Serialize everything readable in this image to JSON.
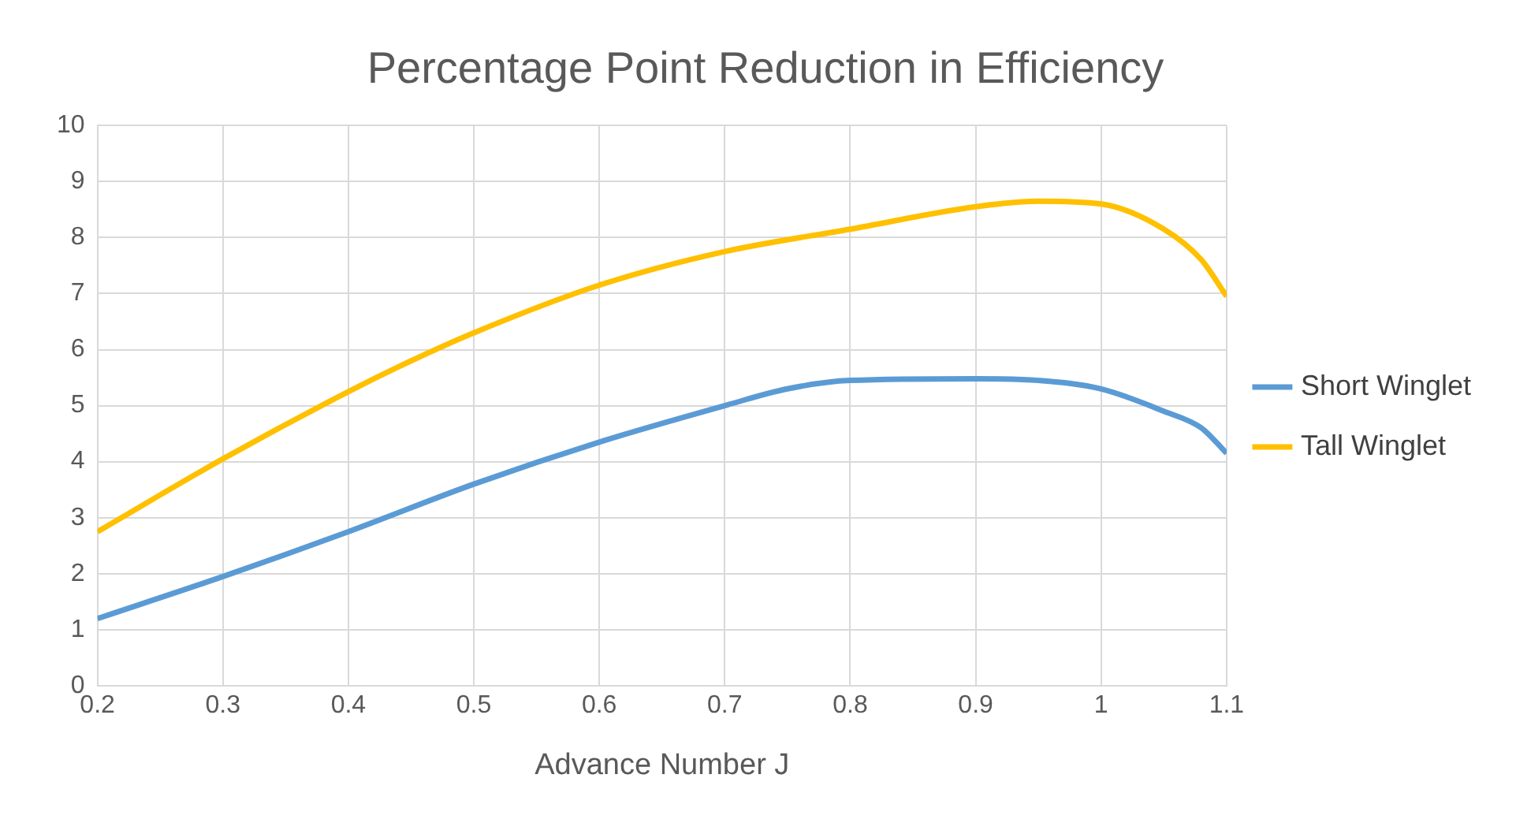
{
  "chart_data": {
    "type": "line",
    "title": "Percentage Point Reduction in Efficiency",
    "xlabel": "Advance Number J",
    "xlim": [
      0.2,
      1.1
    ],
    "xticks": [
      0.2,
      0.3,
      0.4,
      0.5,
      0.6,
      0.7,
      0.8,
      0.9,
      {
        "value": 1,
        "label": "1"
      },
      1.1
    ],
    "ylim": [
      0,
      10
    ],
    "yticks": [
      0,
      1,
      2,
      3,
      4,
      5,
      6,
      7,
      8,
      9,
      10
    ],
    "grid": true,
    "legend": "right",
    "marker": "none",
    "line_style": "solid",
    "series": [
      {
        "name": "Short Winglet",
        "color": "#5b9bd5",
        "x": [
          0.2,
          0.3,
          0.4,
          0.5,
          0.6,
          0.7,
          0.75,
          0.8,
          0.9,
          0.95,
          1.0,
          1.05,
          1.08,
          1.1
        ],
        "values": [
          1.2,
          1.95,
          2.75,
          3.6,
          4.35,
          5.0,
          5.3,
          5.45,
          5.48,
          5.45,
          5.3,
          4.9,
          4.6,
          4.15
        ]
      },
      {
        "name": "Tall Winglet",
        "color": "#ffc000",
        "x": [
          0.2,
          0.3,
          0.4,
          0.45,
          0.5,
          0.6,
          0.7,
          0.8,
          0.9,
          0.95,
          1.0,
          1.05,
          1.08,
          1.1
        ],
        "values": [
          2.75,
          4.05,
          5.25,
          5.8,
          6.3,
          7.15,
          7.75,
          8.15,
          8.55,
          8.65,
          8.6,
          8.15,
          7.6,
          6.95
        ]
      }
    ]
  }
}
